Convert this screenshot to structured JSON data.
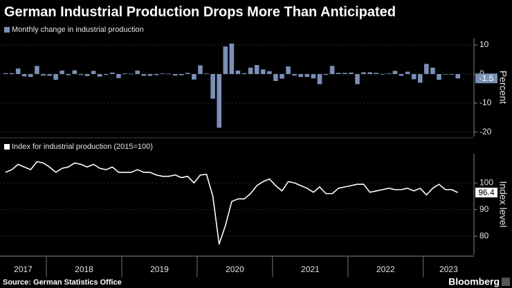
{
  "title": "German Industrial Production Drops More Than Anticipated",
  "source": "Source: German Statistics Office",
  "brand": "Bloomberg",
  "chart_data": [
    {
      "type": "bar",
      "axis_label": "Percent",
      "series": [
        {
          "name": "Monthly change in industrial production",
          "color": "#7a90b8",
          "values": [
            0.3,
            0.3,
            1.9,
            -0.8,
            -1.0,
            2.8,
            -0.5,
            -0.6,
            -2.0,
            1.2,
            -0.4,
            1.3,
            -0.3,
            -0.7,
            1.1,
            -0.9,
            -0.3,
            0.5,
            -1.4,
            0.2,
            0.1,
            1.2,
            -0.6,
            -0.6,
            -0.4,
            0.2,
            0.1,
            -0.5,
            -0.4,
            0.4,
            -1.9,
            3.0,
            0.2,
            -8.5,
            -18.5,
            9.5,
            10.5,
            1.2,
            0.3,
            2.2,
            3.1,
            1.6,
            1.0,
            -2.4,
            -1.6,
            2.6,
            -0.5,
            -1.0,
            -1.0,
            -1.5,
            -3.5,
            -0.3,
            2.8,
            0.4,
            0.4,
            0.5,
            -3.5,
            0.6,
            0.6,
            0.4,
            -0.2,
            0.2,
            1.1,
            -0.6,
            0.8,
            -1.8,
            -3.0,
            3.5,
            2.2,
            -2.0,
            -0.1,
            -0.2,
            -1.5
          ]
        }
      ],
      "ylim": [
        -21.5,
        12.4
      ],
      "yticks": [
        -20,
        -10,
        0,
        10
      ]
    },
    {
      "type": "line",
      "axis_label": "Index level",
      "series": [
        {
          "name": "Index for industrial production (2015=100)",
          "color": "#ffffff",
          "values": [
            104,
            105,
            107,
            106,
            105,
            108,
            107.5,
            106,
            104,
            105.5,
            106,
            107.5,
            107,
            106,
            107,
            105.5,
            105,
            106,
            104,
            104,
            104,
            105,
            104,
            104,
            103,
            102.5,
            102.5,
            103,
            102,
            102.5,
            100,
            103,
            103.2,
            95,
            77,
            84,
            93,
            94,
            94,
            96,
            99,
            100.5,
            101.5,
            99,
            97,
            100.5,
            100,
            99,
            98,
            96.5,
            98.5,
            96,
            96,
            98,
            98.5,
            99,
            99.5,
            99.5,
            96.5,
            97,
            97.5,
            98,
            97.5,
            97.5,
            98,
            97,
            98,
            95.5,
            98,
            99.5,
            97.5,
            97.5,
            96.4
          ]
        }
      ],
      "ylim": [
        73,
        111
      ],
      "yticks": [
        80,
        90,
        100
      ],
      "year_labels": [
        "2017",
        "2018",
        "2019",
        "2020",
        "2021",
        "2022",
        "2023"
      ],
      "year_starts": [
        7,
        19,
        31,
        43,
        55,
        67
      ]
    }
  ]
}
